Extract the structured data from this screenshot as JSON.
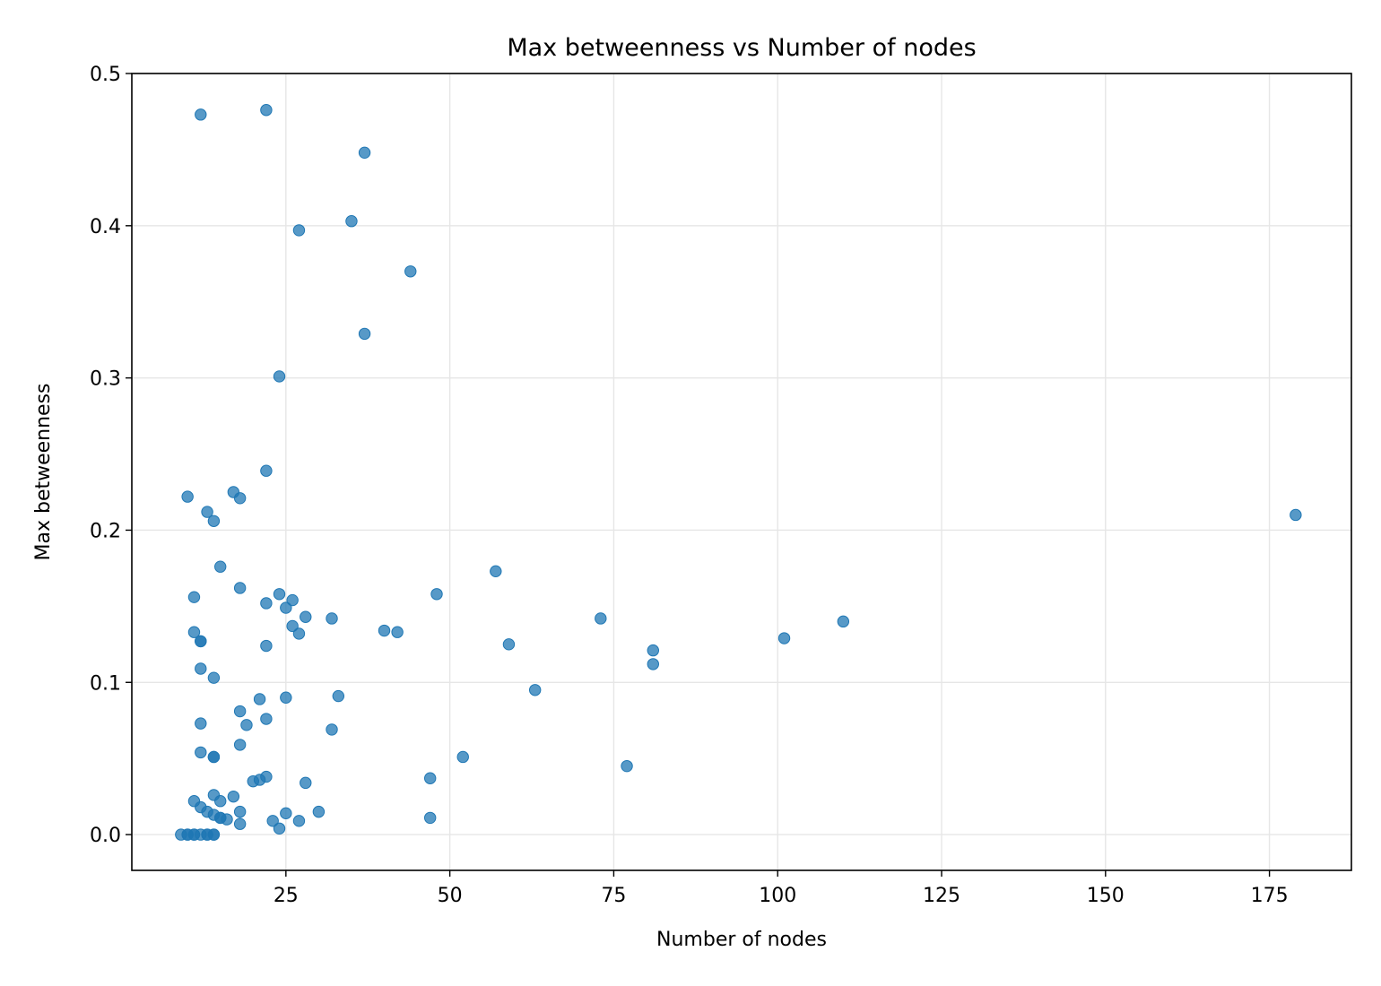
{
  "colors": {
    "point": "#1f77b4",
    "grid": "#e6e6e6",
    "axis": "#000000"
  },
  "chart_data": {
    "type": "scatter",
    "title": "Max betweenness vs Number of nodes",
    "xlabel": "Number of nodes",
    "ylabel": "Max betweenness",
    "xlim": [
      1.5,
      187.5
    ],
    "ylim": [
      -0.0235,
      0.5
    ],
    "xticks": [
      25,
      50,
      75,
      100,
      125,
      150,
      175
    ],
    "xtick_labels": [
      "25",
      "50",
      "75",
      "100",
      "125",
      "150",
      "175"
    ],
    "yticks": [
      0.0,
      0.1,
      0.2,
      0.3,
      0.4,
      0.5
    ],
    "ytick_labels": [
      "0.0",
      "0.1",
      "0.2",
      "0.3",
      "0.4",
      "0.5"
    ],
    "grid": true,
    "series": [
      {
        "points": [
          [
            12,
            0.473
          ],
          [
            22,
            0.476
          ],
          [
            37,
            0.448
          ],
          [
            35,
            0.403
          ],
          [
            27,
            0.397
          ],
          [
            44,
            0.37
          ],
          [
            37,
            0.329
          ],
          [
            24,
            0.301
          ],
          [
            22,
            0.239
          ],
          [
            17,
            0.225
          ],
          [
            10,
            0.222
          ],
          [
            18,
            0.221
          ],
          [
            13,
            0.212
          ],
          [
            14,
            0.206
          ],
          [
            179,
            0.21
          ],
          [
            15,
            0.176
          ],
          [
            57,
            0.173
          ],
          [
            18,
            0.162
          ],
          [
            24,
            0.158
          ],
          [
            11,
            0.156
          ],
          [
            48,
            0.158
          ],
          [
            26,
            0.154
          ],
          [
            22,
            0.152
          ],
          [
            25,
            0.149
          ],
          [
            28,
            0.143
          ],
          [
            32,
            0.142
          ],
          [
            73,
            0.142
          ],
          [
            110,
            0.14
          ],
          [
            26,
            0.137
          ],
          [
            40,
            0.134
          ],
          [
            42,
            0.133
          ],
          [
            27,
            0.132
          ],
          [
            11,
            0.133
          ],
          [
            101,
            0.129
          ],
          [
            12,
            0.127
          ],
          [
            12,
            0.127
          ],
          [
            59,
            0.125
          ],
          [
            22,
            0.124
          ],
          [
            81,
            0.121
          ],
          [
            81,
            0.112
          ],
          [
            12,
            0.109
          ],
          [
            14,
            0.103
          ],
          [
            63,
            0.095
          ],
          [
            33,
            0.091
          ],
          [
            25,
            0.09
          ],
          [
            21,
            0.089
          ],
          [
            18,
            0.081
          ],
          [
            22,
            0.076
          ],
          [
            12,
            0.073
          ],
          [
            19,
            0.072
          ],
          [
            32,
            0.069
          ],
          [
            18,
            0.059
          ],
          [
            12,
            0.054
          ],
          [
            14,
            0.051
          ],
          [
            14,
            0.051
          ],
          [
            52,
            0.051
          ],
          [
            77,
            0.045
          ],
          [
            22,
            0.038
          ],
          [
            21,
            0.036
          ],
          [
            47,
            0.037
          ],
          [
            20,
            0.035
          ],
          [
            28,
            0.034
          ],
          [
            14,
            0.026
          ],
          [
            17,
            0.025
          ],
          [
            11,
            0.022
          ],
          [
            15,
            0.022
          ],
          [
            12,
            0.018
          ],
          [
            13,
            0.015
          ],
          [
            18,
            0.015
          ],
          [
            30,
            0.015
          ],
          [
            25,
            0.014
          ],
          [
            14,
            0.013
          ],
          [
            15,
            0.011
          ],
          [
            15,
            0.011
          ],
          [
            16,
            0.01
          ],
          [
            47,
            0.011
          ],
          [
            23,
            0.009
          ],
          [
            27,
            0.009
          ],
          [
            18,
            0.007
          ],
          [
            24,
            0.004
          ],
          [
            9,
            0.0
          ],
          [
            10,
            0.0
          ],
          [
            10,
            0.0
          ],
          [
            11,
            0.0
          ],
          [
            11,
            0.0
          ],
          [
            12,
            0.0
          ],
          [
            13,
            0.0
          ],
          [
            13,
            0.0
          ],
          [
            14,
            0.0
          ],
          [
            14,
            0.0
          ]
        ]
      }
    ]
  }
}
